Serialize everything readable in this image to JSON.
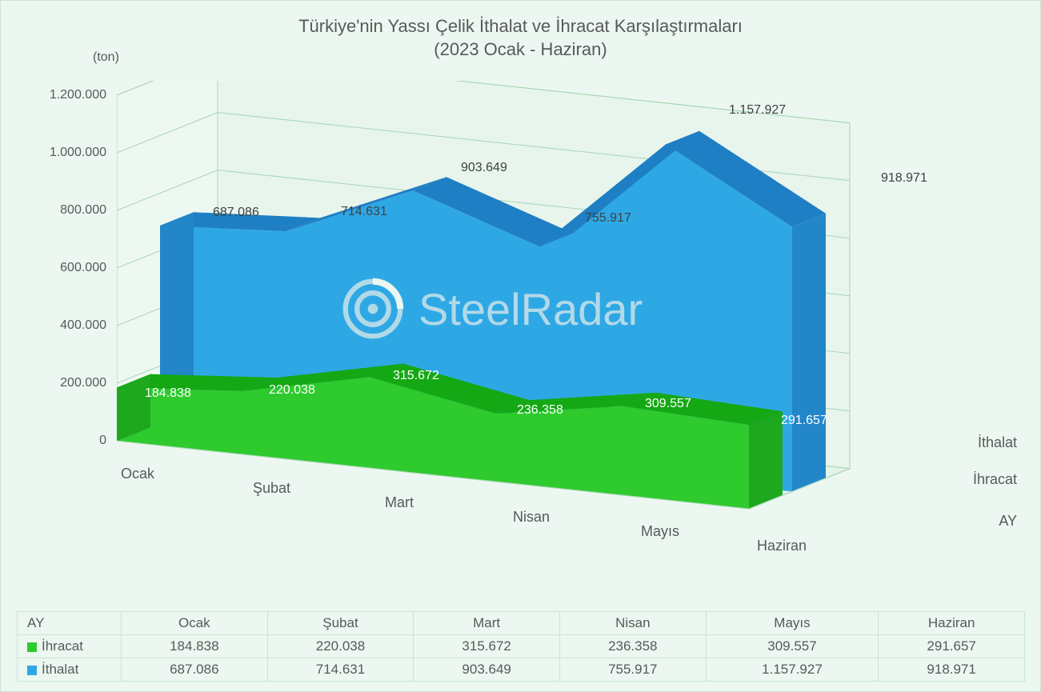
{
  "chart": {
    "type": "area-3d",
    "title_line1": "Türkiye'nin Yassı Çelik İthalat ve İhracat Karşılaştırmaları",
    "title_line2": "(2023 Ocak - Haziran)",
    "title_fontsize": 22,
    "title_color": "#595959",
    "y_unit_label": "(ton)",
    "y_axis": {
      "min": 0,
      "max": 1200000,
      "step": 200000,
      "ticks": [
        "0",
        "200.000",
        "400.000",
        "600.000",
        "800.000",
        "1.000.000",
        "1.200.000"
      ]
    },
    "x_axis_title": "AY",
    "categories": [
      "Ocak",
      "Şubat",
      "Mart",
      "Nisan",
      "Mayıs",
      "Haziran"
    ],
    "z_labels": [
      "İhracat",
      "İthalat"
    ],
    "series": {
      "ihracat": {
        "name": "İhracat",
        "color_top": "#15a815",
        "color_front": "#2eca2e",
        "color_side": "#1da81d",
        "values": [
          184838,
          220038,
          315672,
          236358,
          309557,
          291657
        ],
        "labels": [
          "184.838",
          "220.038",
          "315.672",
          "236.358",
          "309.557",
          "291.657"
        ]
      },
      "ithalat": {
        "name": "İthalat",
        "color_top": "#1f7fc4",
        "color_front": "#2ea8e5",
        "color_side": "#2386c9",
        "values": [
          687086,
          714631,
          903649,
          755917,
          1157927,
          918971
        ],
        "labels": [
          "687.086",
          "714.631",
          "903.649",
          "755.917",
          "1.157.927",
          "918.971"
        ]
      }
    },
    "background_color": "#ebf7f0",
    "grid_color": "#a8d5b5",
    "label_fontsize": 16,
    "axis_fontsize": 18,
    "watermark_text": "SteelRadar",
    "watermark_color": "#b2d9e8"
  },
  "table": {
    "header_label": "AY",
    "columns": [
      "Ocak",
      "Şubat",
      "Mart",
      "Nisan",
      "Mayıs",
      "Haziran"
    ],
    "rows": [
      {
        "name": "İhracat",
        "swatch": "#2eca2e",
        "cells": [
          "184.838",
          "220.038",
          "315.672",
          "236.358",
          "309.557",
          "291.657"
        ]
      },
      {
        "name": "İthalat",
        "swatch": "#2ea8e5",
        "cells": [
          "687.086",
          "714.631",
          "903.649",
          "755.917",
          "1.157.927",
          "918.971"
        ]
      }
    ]
  }
}
